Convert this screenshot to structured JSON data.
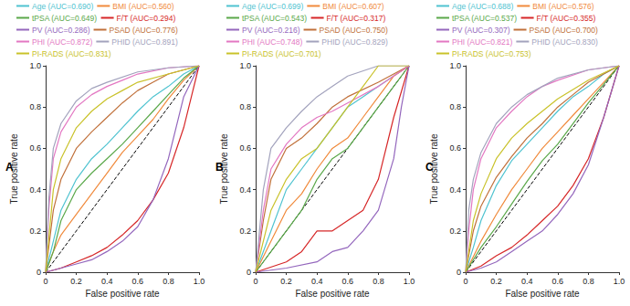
{
  "chart_data": [
    {
      "type": "line",
      "title": "A",
      "x_label": "False positive rate",
      "y_label": "True positive rate",
      "xlim": [
        0,
        1
      ],
      "ylim": [
        0,
        1
      ],
      "xticks": [
        0,
        0.2,
        0.4,
        0.6,
        0.8,
        {
          "value": 1,
          "label": "1.0"
        }
      ],
      "yticks": [
        0,
        0.2,
        0.4,
        0.6,
        0.8,
        {
          "value": 1,
          "label": "1.0"
        }
      ],
      "grid": false,
      "legend": "top",
      "diagonal": {
        "x": [
          0,
          1
        ],
        "values": [
          0,
          1
        ],
        "color": "#000000",
        "line_style": "dashed"
      },
      "series": [
        {
          "name": "Age (AUC=0.690)",
          "color": "#4fc3d0",
          "x": [
            0,
            0.05,
            0.1,
            0.2,
            0.3,
            0.4,
            0.5,
            0.6,
            0.7,
            0.8,
            0.9,
            1
          ],
          "values": [
            0,
            0.15,
            0.3,
            0.45,
            0.55,
            0.62,
            0.7,
            0.78,
            0.85,
            0.9,
            0.96,
            1
          ]
        },
        {
          "name": "BMI (AUC=0.560)",
          "color": "#f08a3c",
          "x": [
            0,
            0.05,
            0.1,
            0.2,
            0.3,
            0.4,
            0.5,
            0.6,
            0.7,
            0.8,
            0.9,
            1
          ],
          "values": [
            0,
            0.1,
            0.18,
            0.28,
            0.38,
            0.48,
            0.58,
            0.66,
            0.74,
            0.84,
            0.93,
            1
          ]
        },
        {
          "name": "tPSA (AUC=0.649)",
          "color": "#5aa84a",
          "x": [
            0,
            0.05,
            0.1,
            0.2,
            0.3,
            0.4,
            0.5,
            0.6,
            0.7,
            0.8,
            0.9,
            1
          ],
          "values": [
            0,
            0.1,
            0.25,
            0.4,
            0.48,
            0.55,
            0.62,
            0.7,
            0.78,
            0.86,
            0.94,
            1
          ]
        },
        {
          "name": "F/T (AUC=0.294)",
          "color": "#d62728",
          "x": [
            0,
            0.1,
            0.2,
            0.3,
            0.4,
            0.5,
            0.6,
            0.7,
            0.8,
            0.9,
            0.95,
            1
          ],
          "values": [
            0,
            0.02,
            0.05,
            0.08,
            0.12,
            0.18,
            0.25,
            0.35,
            0.48,
            0.7,
            0.85,
            1
          ]
        },
        {
          "name": "PV (AUC=0.286)",
          "color": "#9467bd",
          "x": [
            0,
            0.1,
            0.2,
            0.3,
            0.4,
            0.5,
            0.6,
            0.7,
            0.8,
            0.85,
            0.9,
            1
          ],
          "values": [
            0,
            0.02,
            0.04,
            0.06,
            0.1,
            0.15,
            0.22,
            0.35,
            0.55,
            0.7,
            0.85,
            1
          ]
        },
        {
          "name": "PSAD (AUC=0.776)",
          "color": "#c0703a",
          "x": [
            0,
            0.05,
            0.1,
            0.2,
            0.3,
            0.4,
            0.5,
            0.6,
            0.7,
            0.8,
            1
          ],
          "values": [
            0,
            0.3,
            0.45,
            0.6,
            0.68,
            0.75,
            0.82,
            0.88,
            0.92,
            0.96,
            1
          ]
        },
        {
          "name": "PHI (AUC=0.872)",
          "color": "#e377c2",
          "x": [
            0,
            0.02,
            0.05,
            0.1,
            0.2,
            0.3,
            0.4,
            0.5,
            0.6,
            0.8,
            1
          ],
          "values": [
            0,
            0.3,
            0.55,
            0.68,
            0.8,
            0.86,
            0.9,
            0.93,
            0.96,
            0.99,
            1
          ]
        },
        {
          "name": "PHID (AUC=0.891)",
          "color": "#a3a3bd",
          "x": [
            0,
            0.02,
            0.05,
            0.1,
            0.2,
            0.3,
            0.4,
            0.6,
            0.8,
            1
          ],
          "values": [
            0,
            0.35,
            0.6,
            0.72,
            0.83,
            0.89,
            0.92,
            0.97,
            0.99,
            1
          ]
        },
        {
          "name": "PI-RADS (AUC=0.831)",
          "color": "#c9c22a",
          "x": [
            0,
            0.05,
            0.1,
            0.2,
            0.3,
            0.4,
            0.5,
            0.6,
            0.8,
            1
          ],
          "values": [
            0,
            0.4,
            0.55,
            0.7,
            0.78,
            0.84,
            0.88,
            0.92,
            0.96,
            1
          ]
        }
      ]
    },
    {
      "type": "line",
      "title": "B",
      "x_label": "False positive rate",
      "y_label": "True positive rate",
      "xlim": [
        0,
        1
      ],
      "ylim": [
        0,
        1
      ],
      "xticks": [
        0,
        0.2,
        0.4,
        0.6,
        0.8,
        {
          "value": 1,
          "label": "1.0"
        }
      ],
      "yticks": [
        0,
        0.2,
        0.4,
        0.6,
        0.8,
        {
          "value": 1,
          "label": "1.0"
        }
      ],
      "grid": false,
      "legend": "top",
      "diagonal": {
        "x": [
          0,
          1
        ],
        "values": [
          0,
          1
        ],
        "color": "#000000",
        "line_style": "dashed"
      },
      "series": [
        {
          "name": "Age (AUC=0.699)",
          "color": "#4fc3d0",
          "x": [
            0,
            0.1,
            0.2,
            0.3,
            0.4,
            0.5,
            0.6,
            0.7,
            0.8,
            0.9,
            1
          ],
          "values": [
            0,
            0.2,
            0.4,
            0.5,
            0.6,
            0.7,
            0.8,
            0.85,
            0.9,
            0.95,
            1
          ]
        },
        {
          "name": "BMI (AUC=0.607)",
          "color": "#f08a3c",
          "x": [
            0,
            0.1,
            0.2,
            0.3,
            0.4,
            0.5,
            0.6,
            0.7,
            0.8,
            0.9,
            1
          ],
          "values": [
            0,
            0.15,
            0.3,
            0.38,
            0.5,
            0.6,
            0.65,
            0.75,
            0.85,
            0.95,
            1
          ]
        },
        {
          "name": "tPSA (AUC=0.543)",
          "color": "#5aa84a",
          "x": [
            0,
            0.1,
            0.2,
            0.3,
            0.4,
            0.5,
            0.6,
            0.7,
            0.8,
            0.9,
            1
          ],
          "values": [
            0,
            0.1,
            0.2,
            0.3,
            0.45,
            0.55,
            0.6,
            0.7,
            0.8,
            0.9,
            1
          ]
        },
        {
          "name": "F/T (AUC=0.317)",
          "color": "#d62728",
          "x": [
            0,
            0.2,
            0.3,
            0.4,
            0.5,
            0.6,
            0.7,
            0.8,
            0.9,
            1
          ],
          "values": [
            0,
            0.05,
            0.1,
            0.2,
            0.2,
            0.25,
            0.3,
            0.45,
            0.75,
            1
          ]
        },
        {
          "name": "PV (AUC=0.216)",
          "color": "#9467bd",
          "x": [
            0,
            0.2,
            0.4,
            0.5,
            0.6,
            0.7,
            0.8,
            0.9,
            0.95,
            1
          ],
          "values": [
            0,
            0.02,
            0.05,
            0.1,
            0.12,
            0.2,
            0.3,
            0.55,
            0.8,
            1
          ]
        },
        {
          "name": "PSAD (AUC=0.750)",
          "color": "#c0703a",
          "x": [
            0,
            0.05,
            0.1,
            0.2,
            0.3,
            0.4,
            0.5,
            0.6,
            0.8,
            1
          ],
          "values": [
            0,
            0.25,
            0.45,
            0.6,
            0.65,
            0.72,
            0.8,
            0.85,
            0.92,
            1
          ]
        },
        {
          "name": "PHI (AUC=0.748)",
          "color": "#e377c2",
          "x": [
            0,
            0.05,
            0.1,
            0.2,
            0.3,
            0.4,
            0.5,
            0.6,
            0.8,
            1
          ],
          "values": [
            0,
            0.3,
            0.5,
            0.62,
            0.7,
            0.75,
            0.78,
            0.82,
            0.9,
            1
          ]
        },
        {
          "name": "PHID (AUC=0.829)",
          "color": "#a3a3bd",
          "x": [
            0,
            0.05,
            0.1,
            0.2,
            0.3,
            0.4,
            0.5,
            0.6,
            0.8,
            1
          ],
          "values": [
            0,
            0.4,
            0.6,
            0.7,
            0.78,
            0.85,
            0.9,
            0.95,
            1,
            1
          ]
        },
        {
          "name": "PI-RADS (AUC=0.701)",
          "color": "#c9c22a",
          "x": [
            0,
            0.1,
            0.2,
            0.3,
            0.4,
            0.5,
            0.6,
            0.7,
            0.8,
            1
          ],
          "values": [
            0,
            0.3,
            0.45,
            0.55,
            0.6,
            0.7,
            0.8,
            0.9,
            1,
            1
          ]
        }
      ]
    },
    {
      "type": "line",
      "title": "C",
      "x_label": "False positive rate",
      "y_label": "True positive rate",
      "xlim": [
        0,
        1
      ],
      "ylim": [
        0,
        1
      ],
      "xticks": [
        0,
        0.2,
        0.4,
        0.6,
        0.8,
        {
          "value": 1,
          "label": "1.0"
        }
      ],
      "yticks": [
        0,
        0.2,
        0.4,
        0.6,
        0.8,
        {
          "value": 1,
          "label": "1.0"
        }
      ],
      "grid": false,
      "legend": "top",
      "diagonal": {
        "x": [
          0,
          1
        ],
        "values": [
          0,
          1
        ],
        "color": "#000000",
        "line_style": "dashed"
      },
      "series": [
        {
          "name": "Age (AUC=0.688)",
          "color": "#4fc3d0",
          "x": [
            0,
            0.05,
            0.1,
            0.2,
            0.3,
            0.4,
            0.5,
            0.6,
            0.7,
            0.8,
            0.9,
            1
          ],
          "values": [
            0,
            0.12,
            0.25,
            0.42,
            0.54,
            0.62,
            0.7,
            0.78,
            0.85,
            0.9,
            0.96,
            1
          ]
        },
        {
          "name": "BMI (AUC=0.576)",
          "color": "#f08a3c",
          "x": [
            0,
            0.1,
            0.2,
            0.3,
            0.4,
            0.5,
            0.6,
            0.7,
            0.8,
            0.9,
            1
          ],
          "values": [
            0,
            0.15,
            0.28,
            0.4,
            0.5,
            0.6,
            0.68,
            0.76,
            0.84,
            0.92,
            1
          ]
        },
        {
          "name": "tPSA (AUC=0.537)",
          "color": "#5aa84a",
          "x": [
            0,
            0.1,
            0.2,
            0.3,
            0.4,
            0.5,
            0.6,
            0.7,
            0.8,
            0.9,
            1
          ],
          "values": [
            0,
            0.12,
            0.22,
            0.33,
            0.44,
            0.54,
            0.62,
            0.72,
            0.82,
            0.91,
            1
          ]
        },
        {
          "name": "F/T (AUC=0.355)",
          "color": "#d62728",
          "x": [
            0,
            0.1,
            0.2,
            0.3,
            0.4,
            0.5,
            0.6,
            0.7,
            0.8,
            0.9,
            1
          ],
          "values": [
            0,
            0.03,
            0.08,
            0.12,
            0.18,
            0.25,
            0.32,
            0.42,
            0.55,
            0.75,
            1
          ]
        },
        {
          "name": "PV (AUC=0.307)",
          "color": "#9467bd",
          "x": [
            0,
            0.1,
            0.2,
            0.3,
            0.4,
            0.5,
            0.6,
            0.7,
            0.8,
            0.9,
            1
          ],
          "values": [
            0,
            0.02,
            0.05,
            0.1,
            0.15,
            0.2,
            0.28,
            0.38,
            0.52,
            0.75,
            1
          ]
        },
        {
          "name": "PSAD (AUC=0.700)",
          "color": "#c0703a",
          "x": [
            0,
            0.05,
            0.1,
            0.2,
            0.3,
            0.4,
            0.5,
            0.6,
            0.7,
            0.8,
            1
          ],
          "values": [
            0,
            0.2,
            0.32,
            0.46,
            0.56,
            0.65,
            0.72,
            0.8,
            0.86,
            0.92,
            1
          ]
        },
        {
          "name": "PHI (AUC=0.821)",
          "color": "#e377c2",
          "x": [
            0,
            0.02,
            0.05,
            0.1,
            0.2,
            0.3,
            0.4,
            0.5,
            0.6,
            0.8,
            1
          ],
          "values": [
            0,
            0.2,
            0.4,
            0.55,
            0.7,
            0.78,
            0.85,
            0.9,
            0.93,
            0.98,
            1
          ]
        },
        {
          "name": "PHID (AUC=0.830)",
          "color": "#a3a3bd",
          "x": [
            0,
            0.02,
            0.05,
            0.1,
            0.2,
            0.3,
            0.4,
            0.5,
            0.6,
            0.8,
            1
          ],
          "values": [
            0,
            0.3,
            0.45,
            0.58,
            0.72,
            0.8,
            0.86,
            0.9,
            0.94,
            0.98,
            1
          ]
        },
        {
          "name": "PI-RADS (AUC=0.753)",
          "color": "#c9c22a",
          "x": [
            0,
            0.05,
            0.1,
            0.2,
            0.3,
            0.4,
            0.5,
            0.6,
            0.8,
            1
          ],
          "values": [
            0,
            0.25,
            0.38,
            0.55,
            0.65,
            0.72,
            0.78,
            0.84,
            0.93,
            1
          ]
        }
      ]
    }
  ]
}
